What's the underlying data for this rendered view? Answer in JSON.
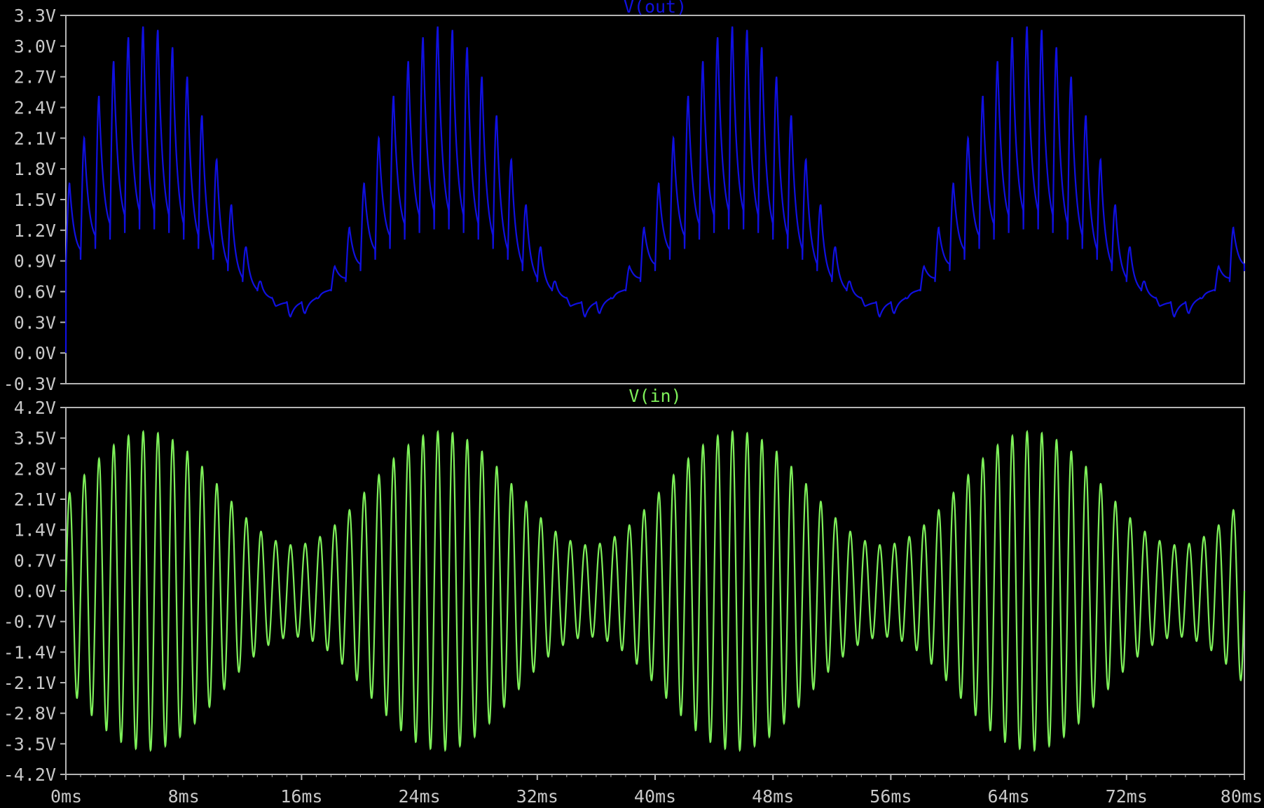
{
  "window": {
    "background": "#000000",
    "axis_color": "#b4b4b4",
    "text_color": "#c8c8c8"
  },
  "chart_data": [
    {
      "type": "line",
      "title": "V(out)",
      "color": "#1010e0",
      "xlim": [
        0,
        80
      ],
      "ylim": [
        -0.3,
        3.3
      ],
      "yticks": [
        3.3,
        3.0,
        2.7,
        2.4,
        2.1,
        1.8,
        1.5,
        1.2,
        0.9,
        0.6,
        0.3,
        0.0,
        -0.3
      ],
      "yticklabels": [
        "3.3V",
        "3.0V",
        "2.7V",
        "2.4V",
        "2.1V",
        "1.8V",
        "1.5V",
        "1.2V",
        "0.9V",
        "0.6V",
        "0.3V",
        "0.0V",
        "-0.3V"
      ],
      "xunit": "ms",
      "series": [
        {
          "name": "V(out)",
          "signal": {
            "kind": "rectified-am",
            "carrier_hz": 1000,
            "envelope_hz": 50,
            "envelope_mean": 2.2,
            "envelope_amp": 1.0,
            "min_level": 0.35,
            "max_level": 3.2,
            "start_value": 0.0
          }
        }
      ]
    },
    {
      "type": "line",
      "title": "V(in)",
      "color": "#7ef05a",
      "xlim": [
        0,
        80
      ],
      "ylim": [
        -4.2,
        4.2
      ],
      "yticks": [
        4.2,
        3.5,
        2.8,
        2.1,
        1.4,
        0.7,
        0.0,
        -0.7,
        -1.4,
        -2.1,
        -2.8,
        -3.5,
        -4.2
      ],
      "yticklabels": [
        "4.2V",
        "3.5V",
        "2.8V",
        "2.1V",
        "1.4V",
        "0.7V",
        "0.0V",
        "-0.7V",
        "-1.4V",
        "-2.1V",
        "-2.8V",
        "-3.5V",
        "-4.2V"
      ],
      "xticks": [
        0,
        8,
        16,
        24,
        32,
        40,
        48,
        56,
        64,
        72,
        80
      ],
      "xticklabels": [
        "0ms",
        "8ms",
        "16ms",
        "24ms",
        "32ms",
        "40ms",
        "48ms",
        "56ms",
        "64ms",
        "72ms",
        "80ms"
      ],
      "series": [
        {
          "name": "V(in)",
          "signal": {
            "kind": "am",
            "carrier_hz": 1000,
            "envelope_hz": 50,
            "envelope_mean": 2.35,
            "envelope_amp": 1.3
          }
        }
      ]
    }
  ]
}
